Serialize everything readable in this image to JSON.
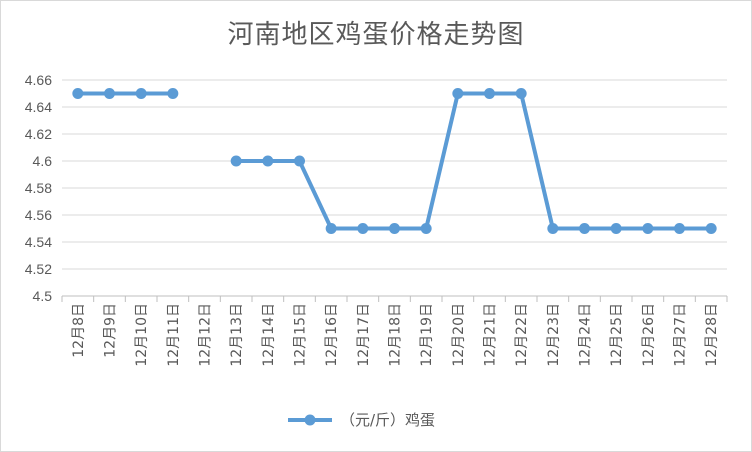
{
  "chart_data": {
    "type": "line",
    "title": "河南地区鸡蛋价格走势图",
    "xlabel": "",
    "ylabel": "",
    "categories": [
      "12月8日",
      "12月9日",
      "12月10日",
      "12月11日",
      "12月12日",
      "12月13日",
      "12月14日",
      "12月15日",
      "12月16日",
      "12月17日",
      "12月18日",
      "12月19日",
      "12月20日",
      "12月21日",
      "12月22日",
      "12月23日",
      "12月24日",
      "12月25日",
      "12月26日",
      "12月27日",
      "12月28日"
    ],
    "y_ticks": [
      "4.5",
      "4.52",
      "4.54",
      "4.56",
      "4.58",
      "4.6",
      "4.62",
      "4.64",
      "4.66"
    ],
    "ylim": [
      4.5,
      4.66
    ],
    "grid": true,
    "legend_position": "bottom",
    "series": [
      {
        "name": "（元/斤）鸡蛋",
        "values": [
          4.65,
          4.65,
          4.65,
          4.65,
          null,
          4.6,
          4.6,
          4.6,
          4.55,
          4.55,
          4.55,
          4.55,
          4.65,
          4.65,
          4.65,
          4.55,
          4.55,
          4.55,
          4.55,
          4.55,
          4.55
        ],
        "color": "#5b9bd5"
      }
    ]
  }
}
